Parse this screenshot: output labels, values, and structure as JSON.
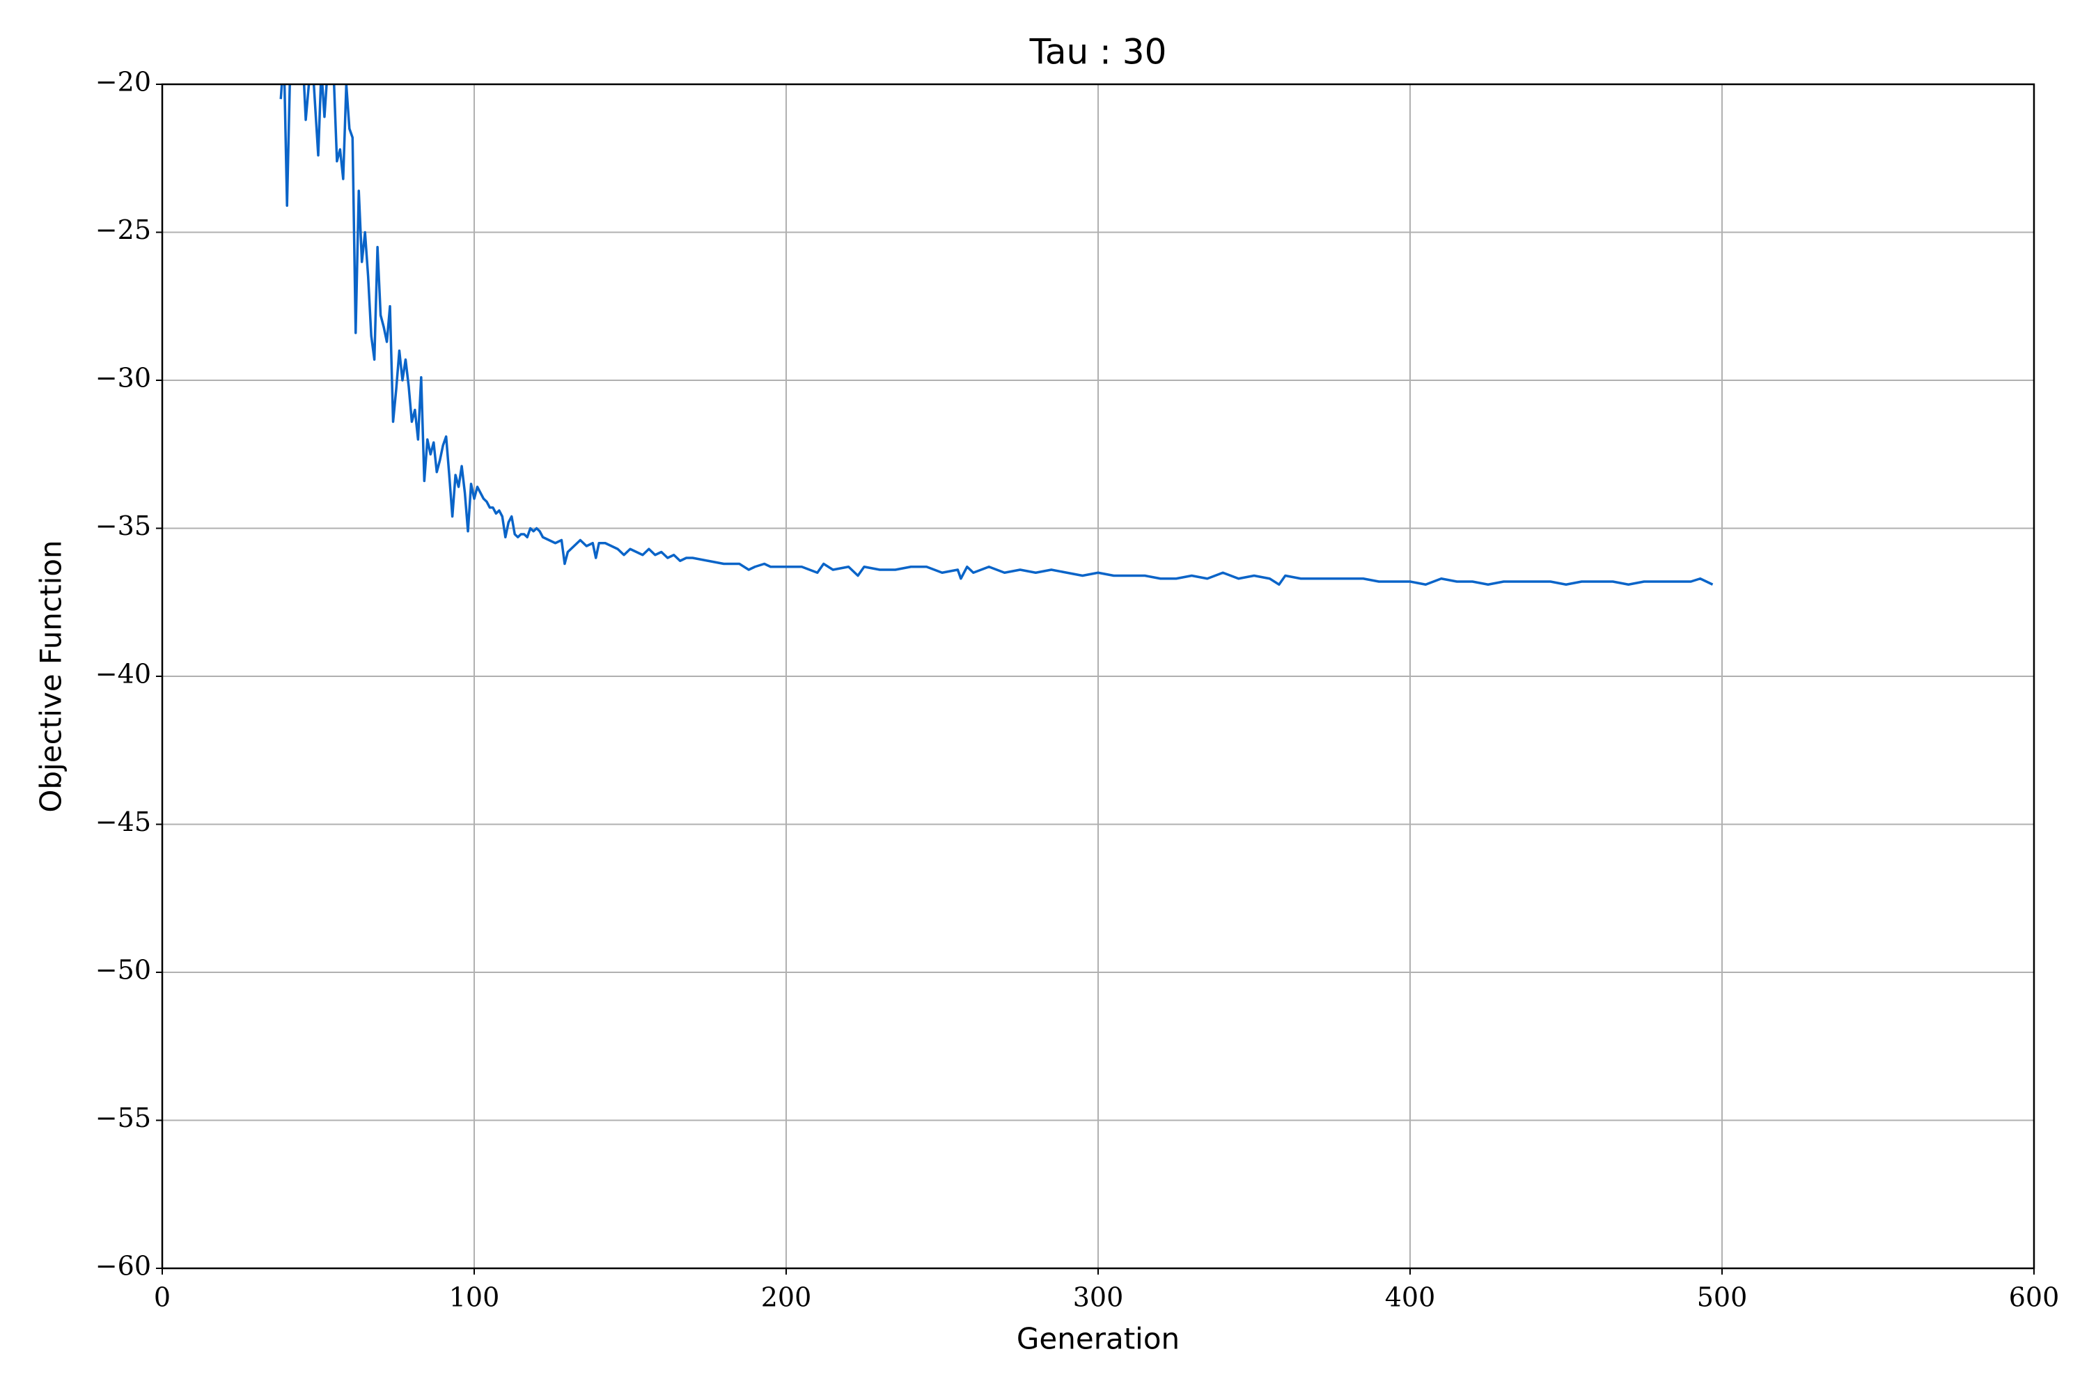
{
  "chart_data": {
    "type": "line",
    "title": "Tau : 30",
    "x_label": "Generation",
    "y_label": "Objective Function",
    "x": [
      38,
      39,
      40,
      41,
      45,
      46,
      47,
      48,
      50,
      51,
      52,
      53,
      55,
      56,
      57,
      58,
      59,
      60,
      61,
      62,
      63,
      64,
      65,
      66,
      67,
      68,
      69,
      70,
      71,
      72,
      73,
      74,
      75,
      76,
      77,
      78,
      79,
      80,
      81,
      82,
      83,
      84,
      85,
      86,
      87,
      88,
      89,
      90,
      91,
      92,
      93,
      94,
      95,
      96,
      97,
      98,
      99,
      100,
      101,
      102,
      103,
      104,
      105,
      106,
      107,
      108,
      109,
      110,
      111,
      112,
      113,
      114,
      115,
      116,
      117,
      118,
      119,
      120,
      121,
      122,
      124,
      126,
      128,
      129,
      130,
      132,
      134,
      136,
      138,
      139,
      140,
      142,
      144,
      146,
      148,
      150,
      152,
      154,
      156,
      158,
      160,
      162,
      164,
      166,
      168,
      170,
      175,
      180,
      185,
      188,
      190,
      193,
      195,
      200,
      205,
      210,
      212,
      215,
      220,
      223,
      225,
      230,
      235,
      240,
      245,
      250,
      255,
      256,
      258,
      260,
      265,
      270,
      275,
      280,
      285,
      290,
      295,
      300,
      305,
      310,
      315,
      320,
      325,
      330,
      335,
      340,
      345,
      350,
      355,
      358,
      360,
      365,
      370,
      375,
      380,
      385,
      390,
      395,
      400,
      405,
      410,
      415,
      420,
      425,
      430,
      435,
      440,
      445,
      450,
      455,
      460,
      465,
      470,
      475,
      480,
      485,
      490,
      493,
      495,
      497
    ],
    "series": [
      {
        "name": "Objective Function",
        "color": "#0a64c8",
        "values": [
          -20.5,
          -19,
          -24.1,
          -19.5,
          -19,
          -21.2,
          -20,
          -19,
          -22.4,
          -19.5,
          -21.1,
          -19.5,
          -19.8,
          -22.6,
          -22.2,
          -23.2,
          -20,
          -21.5,
          -21.8,
          -28.4,
          -23.6,
          -26,
          -25,
          -26.5,
          -28.5,
          -29.3,
          -25.5,
          -27.8,
          -28.2,
          -28.7,
          -27.5,
          -31.4,
          -30.3,
          -29,
          -30,
          -29.3,
          -30.2,
          -31.4,
          -31,
          -32,
          -29.9,
          -33.4,
          -32,
          -32.5,
          -32.1,
          -33.1,
          -32.7,
          -32.2,
          -31.9,
          -33.2,
          -34.6,
          -33.2,
          -33.6,
          -32.9,
          -33.8,
          -35.1,
          -33.5,
          -34,
          -33.6,
          -33.8,
          -34,
          -34.1,
          -34.3,
          -34.3,
          -34.5,
          -34.4,
          -34.6,
          -35.3,
          -34.8,
          -34.6,
          -35.2,
          -35.3,
          -35.2,
          -35.2,
          -35.3,
          -35,
          -35.1,
          -35,
          -35.1,
          -35.3,
          -35.4,
          -35.5,
          -35.4,
          -36.2,
          -35.8,
          -35.6,
          -35.4,
          -35.6,
          -35.5,
          -36,
          -35.5,
          -35.5,
          -35.6,
          -35.7,
          -35.9,
          -35.7,
          -35.8,
          -35.9,
          -35.7,
          -35.9,
          -35.8,
          -36,
          -35.9,
          -36.1,
          -36,
          -36,
          -36.1,
          -36.2,
          -36.2,
          -36.4,
          -36.3,
          -36.2,
          -36.3,
          -36.3,
          -36.3,
          -36.5,
          -36.2,
          -36.4,
          -36.3,
          -36.6,
          -36.3,
          -36.4,
          -36.4,
          -36.3,
          -36.3,
          -36.5,
          -36.4,
          -36.7,
          -36.3,
          -36.5,
          -36.3,
          -36.5,
          -36.4,
          -36.5,
          -36.4,
          -36.5,
          -36.6,
          -36.5,
          -36.6,
          -36.6,
          -36.6,
          -36.7,
          -36.7,
          -36.6,
          -36.7,
          -36.5,
          -36.7,
          -36.6,
          -36.7,
          -36.9,
          -36.6,
          -36.7,
          -36.7,
          -36.7,
          -36.7,
          -36.7,
          -36.8,
          -36.8,
          -36.8,
          -36.9,
          -36.7,
          -36.8,
          -36.8,
          -36.9,
          -36.8,
          -36.8,
          -36.8,
          -36.8,
          -36.9,
          -36.8,
          -36.8,
          -36.8,
          -36.9,
          -36.8,
          -36.8,
          -36.8,
          -36.8,
          -36.7,
          -36.8,
          -36.9
        ]
      }
    ],
    "xlim": [
      0,
      600
    ],
    "xticks": [
      0,
      100,
      200,
      300,
      400,
      500,
      600
    ],
    "ylim": [
      -60,
      -20
    ],
    "yticks": [
      {
        "value": -60,
        "label": "−60"
      },
      {
        "value": -55,
        "label": "−55"
      },
      {
        "value": -50,
        "label": "−50"
      },
      {
        "value": -45,
        "label": "−45"
      },
      {
        "value": -40,
        "label": "−40"
      },
      {
        "value": -35,
        "label": "−35"
      },
      {
        "value": -30,
        "label": "−30"
      },
      {
        "value": -25,
        "label": "−25"
      },
      {
        "value": -20,
        "label": "−20"
      }
    ],
    "grid": true
  }
}
